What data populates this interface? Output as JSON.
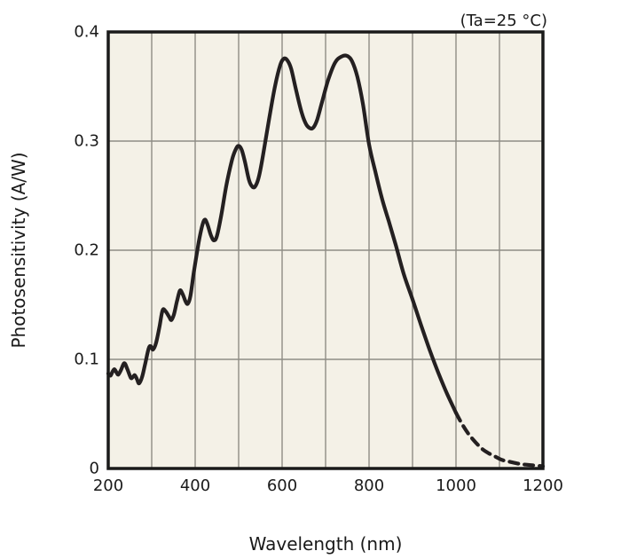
{
  "chart_data": {
    "type": "line",
    "title": "",
    "annotation": "(Ta=25 °C)",
    "xlabel": "Wavelength (nm)",
    "ylabel": "Photosensitivity (A/W)",
    "xlim": [
      200,
      1200
    ],
    "ylim": [
      0,
      0.4
    ],
    "x_ticks": [
      200,
      400,
      600,
      800,
      1000,
      1200
    ],
    "y_ticks": [
      "0",
      "0.1",
      "0.2",
      "0.3",
      "0.4"
    ],
    "y_tick_values": [
      0,
      0.1,
      0.2,
      0.3,
      0.4
    ],
    "x_grid_step": 100,
    "y_grid_step": 0.1,
    "grid": true,
    "legend": "none",
    "colors": {
      "page_bg": "#ffffff",
      "plot_bg": "#f4f1e7",
      "grid": "#8f8d85",
      "border": "#1a1a1a",
      "curve": "#242021",
      "text": "#1a1a1a"
    },
    "series": [
      {
        "name": "photosensitivity",
        "style": "solid",
        "points": [
          [
            200,
            0.087
          ],
          [
            205,
            0.085
          ],
          [
            209,
            0.088
          ],
          [
            214,
            0.091
          ],
          [
            219,
            0.088
          ],
          [
            223,
            0.086
          ],
          [
            229,
            0.09
          ],
          [
            237,
            0.0965
          ],
          [
            244,
            0.091
          ],
          [
            252,
            0.083
          ],
          [
            257,
            0.084
          ],
          [
            261,
            0.0855
          ],
          [
            266,
            0.082
          ],
          [
            271,
            0.078
          ],
          [
            278,
            0.084
          ],
          [
            285,
            0.096
          ],
          [
            293,
            0.11
          ],
          [
            298,
            0.112
          ],
          [
            303,
            0.109
          ],
          [
            310,
            0.115
          ],
          [
            318,
            0.13
          ],
          [
            325,
            0.145
          ],
          [
            332,
            0.144
          ],
          [
            340,
            0.139
          ],
          [
            345,
            0.136
          ],
          [
            351,
            0.141
          ],
          [
            358,
            0.153
          ],
          [
            365,
            0.163
          ],
          [
            371,
            0.16
          ],
          [
            378,
            0.153
          ],
          [
            383,
            0.151
          ],
          [
            389,
            0.158
          ],
          [
            397,
            0.18
          ],
          [
            408,
            0.207
          ],
          [
            416,
            0.222
          ],
          [
            422,
            0.228
          ],
          [
            428,
            0.224
          ],
          [
            436,
            0.214
          ],
          [
            443,
            0.209
          ],
          [
            450,
            0.213
          ],
          [
            460,
            0.232
          ],
          [
            472,
            0.26
          ],
          [
            485,
            0.283
          ],
          [
            494,
            0.293
          ],
          [
            500,
            0.2955
          ],
          [
            507,
            0.292
          ],
          [
            515,
            0.28
          ],
          [
            524,
            0.264
          ],
          [
            532,
            0.258
          ],
          [
            539,
            0.259
          ],
          [
            547,
            0.268
          ],
          [
            557,
            0.289
          ],
          [
            570,
            0.32
          ],
          [
            584,
            0.351
          ],
          [
            596,
            0.37
          ],
          [
            604,
            0.3755
          ],
          [
            612,
            0.374
          ],
          [
            621,
            0.366
          ],
          [
            632,
            0.347
          ],
          [
            645,
            0.326
          ],
          [
            656,
            0.315
          ],
          [
            666,
            0.3115
          ],
          [
            673,
            0.313
          ],
          [
            681,
            0.32
          ],
          [
            692,
            0.336
          ],
          [
            706,
            0.356
          ],
          [
            722,
            0.372
          ],
          [
            737,
            0.3775
          ],
          [
            750,
            0.378
          ],
          [
            761,
            0.373
          ],
          [
            773,
            0.359
          ],
          [
            786,
            0.334
          ],
          [
            800,
            0.297
          ],
          [
            815,
            0.271
          ],
          [
            830,
            0.247
          ],
          [
            845,
            0.227
          ],
          [
            862,
            0.204
          ],
          [
            880,
            0.178
          ],
          [
            900,
            0.155
          ],
          [
            920,
            0.131
          ],
          [
            940,
            0.108
          ],
          [
            960,
            0.087
          ],
          [
            980,
            0.068
          ],
          [
            1000,
            0.051
          ]
        ]
      },
      {
        "name": "photosensitivity-extrapolated",
        "style": "dashed",
        "points": [
          [
            1000,
            0.051
          ],
          [
            1015,
            0.04
          ],
          [
            1030,
            0.031
          ],
          [
            1045,
            0.024
          ],
          [
            1060,
            0.018
          ],
          [
            1075,
            0.014
          ],
          [
            1090,
            0.011
          ],
          [
            1105,
            0.008
          ],
          [
            1125,
            0.006
          ],
          [
            1150,
            0.004
          ],
          [
            1175,
            0.003
          ],
          [
            1200,
            0.002
          ]
        ]
      }
    ]
  }
}
